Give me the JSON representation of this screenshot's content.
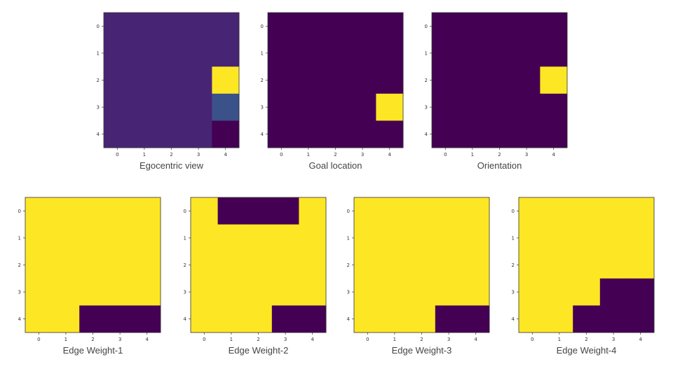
{
  "chart_data": [
    {
      "type": "heatmap",
      "title": "Egocentric view",
      "xticks": [
        "0",
        "1",
        "2",
        "3",
        "4"
      ],
      "yticks": [
        "0",
        "1",
        "2",
        "3",
        "4"
      ],
      "values": [
        [
          0.1,
          0.1,
          0.1,
          0.1,
          0.1
        ],
        [
          0.1,
          0.1,
          0.1,
          0.1,
          0.1
        ],
        [
          0.1,
          0.1,
          0.1,
          0.1,
          1.0
        ],
        [
          0.1,
          0.1,
          0.1,
          0.1,
          0.25
        ],
        [
          0.1,
          0.1,
          0.1,
          0.1,
          0.0
        ]
      ]
    },
    {
      "type": "heatmap",
      "title": "Goal location",
      "xticks": [
        "0",
        "1",
        "2",
        "3",
        "4"
      ],
      "yticks": [
        "0",
        "1",
        "2",
        "3",
        "4"
      ],
      "values": [
        [
          0,
          0,
          0,
          0,
          0
        ],
        [
          0,
          0,
          0,
          0,
          0
        ],
        [
          0,
          0,
          0,
          0,
          0
        ],
        [
          0,
          0,
          0,
          0,
          1
        ],
        [
          0,
          0,
          0,
          0,
          0
        ]
      ]
    },
    {
      "type": "heatmap",
      "title": "Orientation",
      "xticks": [
        "0",
        "1",
        "2",
        "3",
        "4"
      ],
      "yticks": [
        "0",
        "1",
        "2",
        "3",
        "4"
      ],
      "values": [
        [
          0,
          0,
          0,
          0,
          0
        ],
        [
          0,
          0,
          0,
          0,
          0
        ],
        [
          0,
          0,
          0,
          0,
          1
        ],
        [
          0,
          0,
          0,
          0,
          0
        ],
        [
          0,
          0,
          0,
          0,
          0
        ]
      ]
    },
    {
      "type": "heatmap",
      "title": "Edge Weight-1",
      "xticks": [
        "0",
        "1",
        "2",
        "3",
        "4"
      ],
      "yticks": [
        "0",
        "1",
        "2",
        "3",
        "4"
      ],
      "values": [
        [
          1,
          1,
          1,
          1,
          1
        ],
        [
          1,
          1,
          1,
          1,
          1
        ],
        [
          1,
          1,
          1,
          1,
          1
        ],
        [
          1,
          1,
          1,
          1,
          1
        ],
        [
          1,
          1,
          0,
          0,
          0
        ]
      ]
    },
    {
      "type": "heatmap",
      "title": "Edge Weight-2",
      "xticks": [
        "0",
        "1",
        "2",
        "3",
        "4"
      ],
      "yticks": [
        "0",
        "1",
        "2",
        "3",
        "4"
      ],
      "values": [
        [
          1,
          0,
          0,
          0,
          1
        ],
        [
          1,
          1,
          1,
          1,
          1
        ],
        [
          1,
          1,
          1,
          1,
          1
        ],
        [
          1,
          1,
          1,
          1,
          1
        ],
        [
          1,
          1,
          1,
          0,
          0
        ]
      ]
    },
    {
      "type": "heatmap",
      "title": "Edge Weight-3",
      "xticks": [
        "0",
        "1",
        "2",
        "3",
        "4"
      ],
      "yticks": [
        "0",
        "1",
        "2",
        "3",
        "4"
      ],
      "values": [
        [
          1,
          1,
          1,
          1,
          1
        ],
        [
          1,
          1,
          1,
          1,
          1
        ],
        [
          1,
          1,
          1,
          1,
          1
        ],
        [
          1,
          1,
          1,
          1,
          1
        ],
        [
          1,
          1,
          1,
          0,
          0
        ]
      ]
    },
    {
      "type": "heatmap",
      "title": "Edge Weight-4",
      "xticks": [
        "0",
        "1",
        "2",
        "3",
        "4"
      ],
      "yticks": [
        "0",
        "1",
        "2",
        "3",
        "4"
      ],
      "values": [
        [
          1,
          1,
          1,
          1,
          1
        ],
        [
          1,
          1,
          1,
          1,
          1
        ],
        [
          1,
          1,
          1,
          1,
          1
        ],
        [
          1,
          1,
          1,
          0,
          0
        ],
        [
          1,
          1,
          0,
          0,
          0
        ]
      ]
    }
  ],
  "colormap": {
    "name": "viridis",
    "stops": [
      "#440154",
      "#482878",
      "#3e4989",
      "#31688e",
      "#26828e",
      "#1f9e89",
      "#35b779",
      "#6ece58",
      "#b5de2b",
      "#fde725"
    ]
  }
}
